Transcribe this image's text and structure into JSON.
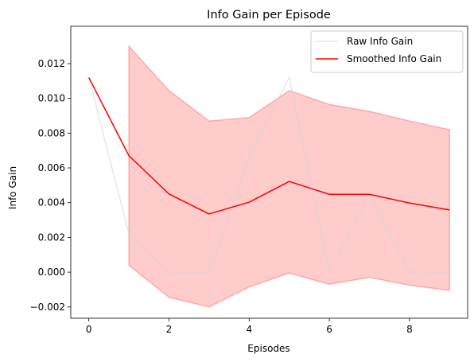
{
  "chart_data": {
    "type": "line",
    "title": "Info Gain per Episode",
    "xlabel": "Episodes",
    "ylabel": "Info Gain",
    "xlim": [
      -0.45,
      9.45
    ],
    "ylim": [
      -0.00265,
      0.01415
    ],
    "x_ticks": [
      0,
      2,
      4,
      6,
      8
    ],
    "x_tick_labels": [
      "0",
      "2",
      "4",
      "6",
      "8"
    ],
    "y_ticks": [
      -0.002,
      0.0,
      0.002,
      0.004,
      0.006,
      0.008,
      0.01,
      0.012
    ],
    "y_tick_labels": [
      "−0.002",
      "0.000",
      "0.002",
      "0.004",
      "0.006",
      "0.008",
      "0.010",
      "0.012"
    ],
    "grid": false,
    "legend_position": "top-right",
    "series": [
      {
        "name": "Raw Info Gain",
        "color": "#d3d3d3",
        "x": [
          0,
          1,
          2,
          3,
          4,
          5,
          6,
          7,
          8,
          9
        ],
        "y": [
          0.0112,
          0.0022,
          0.0,
          0.0,
          0.0067,
          0.0112,
          0.0,
          0.0045,
          0.0,
          0.0
        ]
      },
      {
        "name": "Smoothed Info Gain",
        "color": "#ff0000",
        "x": [
          0,
          1,
          2,
          3,
          4,
          5,
          6,
          7,
          8,
          9
        ],
        "y": [
          0.0112,
          0.0067,
          0.0045,
          0.00335,
          0.00403,
          0.00522,
          0.00448,
          0.00448,
          0.00398,
          0.00358
        ]
      }
    ],
    "band": {
      "color": "#ff0000",
      "opacity": 0.2,
      "x": [
        1,
        2,
        3,
        4,
        5,
        6,
        7,
        8,
        9
      ],
      "lower": [
        0.0004,
        -0.00145,
        -0.002,
        -0.00085,
        -5e-05,
        -0.0007,
        -0.0003,
        -0.00075,
        -0.00105
      ],
      "upper": [
        0.013,
        0.01045,
        0.0087,
        0.0089,
        0.01045,
        0.00965,
        0.00925,
        0.0087,
        0.0082
      ]
    }
  }
}
